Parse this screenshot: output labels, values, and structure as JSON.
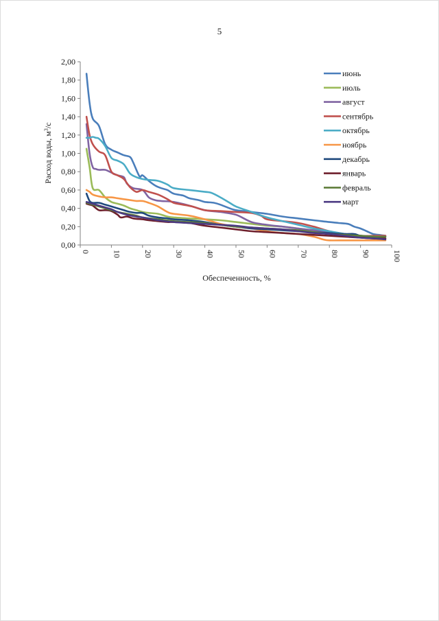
{
  "page": {
    "number": "5"
  },
  "chart_data": {
    "type": "line",
    "title": "",
    "xlabel": "Обеспеченность, %",
    "ylabel_main": "Расход воды, м",
    "ylabel_sup": "3",
    "ylabel_tail": "/с",
    "xlim": [
      0,
      100
    ],
    "ylim": [
      0,
      2
    ],
    "xticks": [
      0,
      10,
      20,
      30,
      40,
      50,
      60,
      70,
      80,
      90,
      100
    ],
    "xtick_labels": [
      "0",
      "10",
      "20",
      "30",
      "40",
      "50",
      "60",
      "70",
      "80",
      "90",
      "100"
    ],
    "yticks": [
      0,
      0.2,
      0.4,
      0.6,
      0.8,
      1.0,
      1.2,
      1.4,
      1.6,
      1.8,
      2.0
    ],
    "ytick_labels": [
      "0,00",
      "0,20",
      "0,40",
      "0,60",
      "0,80",
      "1,00",
      "1,20",
      "1,40",
      "1,60",
      "1,80",
      "2,00"
    ],
    "grid": false,
    "legend_position": "right",
    "series": [
      {
        "name": "июнь",
        "color": "#4a7ebb",
        "x": [
          2,
          3,
          4,
          6,
          8,
          10,
          12,
          14,
          16,
          17,
          19,
          20,
          22,
          24,
          26,
          28,
          30,
          33,
          35,
          38,
          40,
          43,
          45,
          48,
          50,
          55,
          60,
          65,
          70,
          75,
          80,
          83,
          86,
          88,
          90,
          92,
          94,
          96,
          98
        ],
        "y": [
          1.87,
          1.55,
          1.38,
          1.3,
          1.1,
          1.04,
          1.01,
          0.98,
          0.96,
          0.9,
          0.75,
          0.76,
          0.7,
          0.65,
          0.62,
          0.6,
          0.56,
          0.54,
          0.51,
          0.49,
          0.47,
          0.46,
          0.44,
          0.4,
          0.38,
          0.36,
          0.34,
          0.31,
          0.29,
          0.27,
          0.25,
          0.24,
          0.23,
          0.2,
          0.18,
          0.15,
          0.12,
          0.11,
          0.1
        ]
      },
      {
        "name": "июль",
        "color": "#9bbb59",
        "x": [
          2,
          3,
          4,
          6,
          8,
          10,
          12,
          14,
          16,
          18,
          20,
          22,
          25,
          28,
          30,
          35,
          40,
          45,
          50,
          55,
          60,
          65,
          70,
          75,
          80,
          85,
          90,
          95,
          98
        ],
        "y": [
          1.05,
          0.85,
          0.62,
          0.6,
          0.52,
          0.47,
          0.45,
          0.43,
          0.4,
          0.38,
          0.36,
          0.35,
          0.34,
          0.31,
          0.3,
          0.29,
          0.28,
          0.27,
          0.25,
          0.23,
          0.21,
          0.2,
          0.18,
          0.16,
          0.14,
          0.12,
          0.1,
          0.09,
          0.09
        ]
      },
      {
        "name": "август",
        "color": "#8064a2",
        "x": [
          2,
          3,
          4,
          5,
          6,
          8,
          10,
          12,
          14,
          15,
          17,
          20,
          22,
          24,
          26,
          30,
          35,
          40,
          45,
          50,
          55,
          60,
          65,
          70,
          75,
          80,
          85,
          90,
          95,
          98
        ],
        "y": [
          1.32,
          1.0,
          0.85,
          0.83,
          0.82,
          0.82,
          0.79,
          0.76,
          0.74,
          0.67,
          0.62,
          0.6,
          0.52,
          0.49,
          0.48,
          0.47,
          0.43,
          0.38,
          0.36,
          0.33,
          0.25,
          0.22,
          0.2,
          0.18,
          0.16,
          0.14,
          0.12,
          0.1,
          0.09,
          0.09
        ]
      },
      {
        "name": "сентябрь",
        "color": "#c0504d",
        "x": [
          2,
          3,
          4,
          6,
          8,
          10,
          12,
          14,
          16,
          18,
          20,
          22,
          25,
          28,
          30,
          33,
          36,
          40,
          45,
          50,
          55,
          58,
          60,
          65,
          70,
          75,
          80,
          85,
          90,
          95,
          98
        ],
        "y": [
          1.4,
          1.2,
          1.1,
          1.02,
          0.98,
          0.8,
          0.76,
          0.72,
          0.63,
          0.58,
          0.6,
          0.58,
          0.55,
          0.5,
          0.46,
          0.44,
          0.42,
          0.38,
          0.37,
          0.36,
          0.35,
          0.32,
          0.28,
          0.26,
          0.24,
          0.2,
          0.15,
          0.12,
          0.1,
          0.1,
          0.1
        ]
      },
      {
        "name": "октябрь",
        "color": "#4bacc6",
        "x": [
          2,
          3,
          4,
          5,
          6,
          8,
          10,
          12,
          14,
          16,
          18,
          20,
          22,
          25,
          28,
          30,
          35,
          40,
          42,
          45,
          48,
          50,
          55,
          60,
          65,
          70,
          75,
          80,
          85,
          90,
          95,
          98
        ],
        "y": [
          1.17,
          1.17,
          1.18,
          1.17,
          1.16,
          1.08,
          0.95,
          0.92,
          0.88,
          0.78,
          0.74,
          0.72,
          0.71,
          0.7,
          0.66,
          0.62,
          0.6,
          0.58,
          0.57,
          0.52,
          0.46,
          0.42,
          0.36,
          0.3,
          0.26,
          0.22,
          0.18,
          0.15,
          0.12,
          0.1,
          0.09,
          0.09
        ]
      },
      {
        "name": "ноябрь",
        "color": "#f79646",
        "x": [
          2,
          3,
          4,
          6,
          8,
          10,
          12,
          14,
          16,
          18,
          20,
          22,
          25,
          28,
          30,
          35,
          40,
          45,
          50,
          55,
          60,
          65,
          70,
          75,
          78,
          80,
          85,
          90,
          95,
          98
        ],
        "y": [
          0.6,
          0.58,
          0.55,
          0.53,
          0.52,
          0.52,
          0.51,
          0.5,
          0.49,
          0.48,
          0.48,
          0.46,
          0.42,
          0.36,
          0.34,
          0.32,
          0.28,
          0.23,
          0.2,
          0.18,
          0.15,
          0.13,
          0.12,
          0.09,
          0.06,
          0.05,
          0.05,
          0.05,
          0.05,
          0.05
        ]
      },
      {
        "name": "декабрь",
        "color": "#1f497d",
        "x": [
          2,
          3,
          4,
          6,
          8,
          10,
          12,
          14,
          16,
          18,
          20,
          22,
          25,
          28,
          30,
          35,
          40,
          45,
          50,
          55,
          60,
          65,
          70,
          75,
          80,
          85,
          88,
          90,
          95,
          98
        ],
        "y": [
          0.56,
          0.48,
          0.46,
          0.46,
          0.44,
          0.42,
          0.4,
          0.38,
          0.36,
          0.35,
          0.35,
          0.32,
          0.3,
          0.29,
          0.28,
          0.27,
          0.25,
          0.22,
          0.2,
          0.18,
          0.17,
          0.16,
          0.15,
          0.14,
          0.13,
          0.12,
          0.12,
          0.1,
          0.08,
          0.07
        ]
      },
      {
        "name": "январь",
        "color": "#6e1f2c",
        "x": [
          2,
          3,
          4,
          6,
          8,
          10,
          12,
          13,
          15,
          17,
          20,
          22,
          25,
          28,
          30,
          35,
          40,
          45,
          50,
          55,
          60,
          65,
          70,
          75,
          80,
          85,
          90,
          95,
          98
        ],
        "y": [
          0.45,
          0.44,
          0.43,
          0.38,
          0.38,
          0.37,
          0.33,
          0.3,
          0.31,
          0.29,
          0.28,
          0.27,
          0.26,
          0.25,
          0.25,
          0.24,
          0.21,
          0.19,
          0.17,
          0.15,
          0.14,
          0.13,
          0.12,
          0.11,
          0.1,
          0.09,
          0.08,
          0.07,
          0.07
        ]
      },
      {
        "name": "февраль",
        "color": "#5e7d3a",
        "x": [
          2,
          3,
          4,
          6,
          8,
          10,
          12,
          15,
          18,
          20,
          25,
          30,
          35,
          40,
          45,
          50,
          55,
          60,
          65,
          70,
          75,
          80,
          85,
          90,
          95,
          98
        ],
        "y": [
          0.46,
          0.45,
          0.44,
          0.42,
          0.4,
          0.38,
          0.36,
          0.34,
          0.32,
          0.3,
          0.28,
          0.26,
          0.25,
          0.24,
          0.22,
          0.2,
          0.19,
          0.18,
          0.17,
          0.16,
          0.14,
          0.12,
          0.11,
          0.1,
          0.09,
          0.09
        ]
      },
      {
        "name": "март",
        "color": "#4b3a82",
        "x": [
          2,
          3,
          4,
          6,
          8,
          10,
          12,
          15,
          18,
          20,
          25,
          30,
          35,
          40,
          45,
          50,
          55,
          60,
          65,
          70,
          75,
          80,
          85,
          90,
          95,
          98
        ],
        "y": [
          0.47,
          0.46,
          0.45,
          0.43,
          0.41,
          0.39,
          0.36,
          0.33,
          0.31,
          0.3,
          0.27,
          0.25,
          0.24,
          0.23,
          0.22,
          0.21,
          0.19,
          0.18,
          0.17,
          0.15,
          0.13,
          0.12,
          0.1,
          0.08,
          0.07,
          0.06
        ]
      }
    ]
  }
}
